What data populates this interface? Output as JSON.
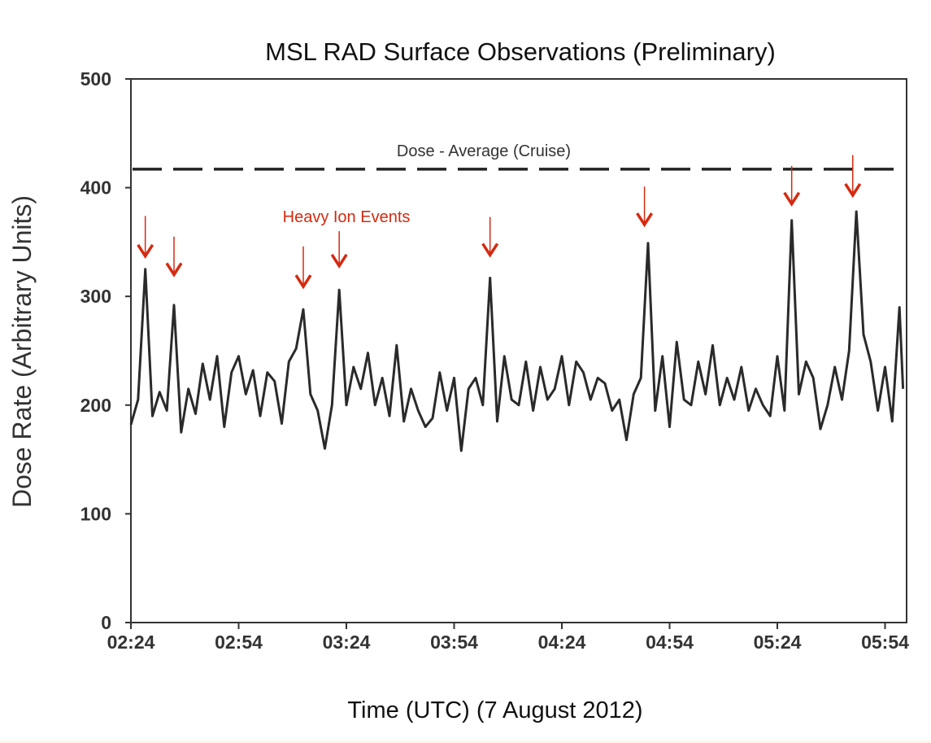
{
  "chart_data": {
    "type": "line",
    "title": "MSL RAD Surface Observations (Preliminary)",
    "xlabel": "Time (UTC) (7 August 2012)",
    "ylabel": "Dose Rate (Arbitrary Units)",
    "xlim": [
      "02:24",
      "06:00"
    ],
    "ylim": [
      0,
      500
    ],
    "x_ticks": [
      "02:24",
      "02:54",
      "03:24",
      "03:54",
      "04:24",
      "04:54",
      "05:24",
      "05:54"
    ],
    "y_ticks": [
      0,
      100,
      200,
      300,
      400,
      500
    ],
    "grid": false,
    "colors": {
      "series": "#2a2a2a",
      "annotation": "#d42a10",
      "reference": "#222222"
    },
    "series": [
      {
        "x": [
          "02:24",
          "02:26",
          "02:28",
          "02:30",
          "02:32",
          "02:34",
          "02:36",
          "02:38",
          "02:40",
          "02:42",
          "02:44",
          "02:46",
          "02:48",
          "02:50",
          "02:52",
          "02:54",
          "02:56",
          "02:58",
          "03:00",
          "03:02",
          "03:04",
          "03:06",
          "03:08",
          "03:10",
          "03:12",
          "03:14",
          "03:16",
          "03:18",
          "03:20",
          "03:22",
          "03:24",
          "03:26",
          "03:28",
          "03:30",
          "03:32",
          "03:34",
          "03:36",
          "03:38",
          "03:40",
          "03:42",
          "03:44",
          "03:46",
          "03:48",
          "03:50",
          "03:52",
          "03:54",
          "03:56",
          "03:58",
          "04:00",
          "04:02",
          "04:04",
          "04:06",
          "04:08",
          "04:10",
          "04:12",
          "04:14",
          "04:16",
          "04:18",
          "04:20",
          "04:22",
          "04:24",
          "04:26",
          "04:28",
          "04:30",
          "04:32",
          "04:34",
          "04:36",
          "04:38",
          "04:40",
          "04:42",
          "04:44",
          "04:46",
          "04:48",
          "04:50",
          "04:52",
          "04:54",
          "04:56",
          "04:58",
          "05:00",
          "05:02",
          "05:04",
          "05:06",
          "05:08",
          "05:10",
          "05:12",
          "05:14",
          "05:16",
          "05:18",
          "05:20",
          "05:22",
          "05:24",
          "05:26",
          "05:28",
          "05:30",
          "05:32",
          "05:34",
          "05:36",
          "05:38",
          "05:40",
          "05:42",
          "05:44",
          "05:46",
          "05:48",
          "05:50",
          "05:52",
          "05:54",
          "05:56",
          "05:58",
          "05:59"
        ],
        "y": [
          182,
          205,
          325,
          190,
          212,
          195,
          292,
          175,
          215,
          192,
          238,
          205,
          245,
          180,
          230,
          245,
          210,
          232,
          190,
          230,
          222,
          183,
          240,
          252,
          288,
          210,
          195,
          160,
          200,
          306,
          200,
          235,
          215,
          248,
          200,
          225,
          190,
          255,
          185,
          215,
          195,
          180,
          188,
          230,
          195,
          225,
          158,
          215,
          225,
          200,
          317,
          185,
          245,
          205,
          200,
          240,
          195,
          235,
          205,
          215,
          245,
          200,
          240,
          230,
          205,
          225,
          220,
          195,
          205,
          168,
          210,
          225,
          349,
          195,
          245,
          180,
          258,
          205,
          200,
          240,
          210,
          255,
          200,
          225,
          205,
          235,
          195,
          215,
          200,
          190,
          245,
          195,
          370,
          210,
          240,
          225,
          178,
          200,
          235,
          205,
          250,
          378,
          265,
          240,
          195,
          235,
          185,
          290,
          215
        ]
      }
    ],
    "reference_line": {
      "label": "Dose - Average (Cruise)",
      "value": 417,
      "style": "dashed"
    },
    "annotations": {
      "label": "Heavy Ion Events",
      "arrows": [
        {
          "time": "02:28",
          "from": 374,
          "to": 337
        },
        {
          "time": "02:36",
          "from": 355,
          "to": 320
        },
        {
          "time": "03:12",
          "from": 346,
          "to": 309
        },
        {
          "time": "03:22",
          "from": 360,
          "to": 328
        },
        {
          "time": "04:04",
          "from": 373,
          "to": 338
        },
        {
          "time": "04:47",
          "from": 401,
          "to": 366
        },
        {
          "time": "05:28",
          "from": 420,
          "to": 385
        },
        {
          "time": "05:45",
          "from": 430,
          "to": 393
        }
      ]
    }
  }
}
